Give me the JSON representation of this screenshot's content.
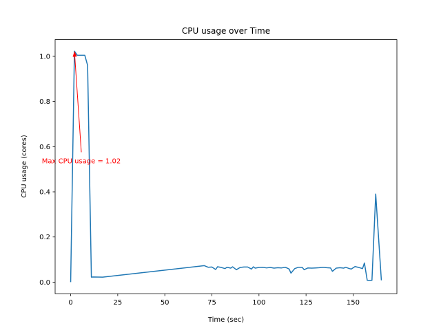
{
  "chart_data": {
    "type": "line",
    "title": "CPU usage over Time",
    "x_label": "Time (sec)",
    "y_label": "CPU usage (cores)",
    "x": [
      0,
      2,
      3.5,
      7.5,
      9,
      11,
      12,
      17,
      71,
      73,
      75,
      77,
      78,
      80,
      82,
      83,
      85,
      86,
      88,
      90,
      92,
      94,
      96,
      97,
      98,
      100,
      102,
      104,
      106,
      108,
      110,
      112,
      114,
      116,
      117,
      119,
      121,
      123,
      124,
      126,
      128,
      130,
      132,
      134,
      136,
      138,
      139,
      141,
      143,
      145,
      146,
      148,
      149,
      151,
      153,
      155,
      156,
      157.5,
      160,
      162,
      165
    ],
    "values": [
      0,
      1.023,
      1.005,
      1.005,
      0.96,
      0.022,
      0.023,
      0.022,
      0.073,
      0.066,
      0.067,
      0.056,
      0.068,
      0.065,
      0.06,
      0.066,
      0.062,
      0.068,
      0.055,
      0.065,
      0.067,
      0.067,
      0.058,
      0.068,
      0.062,
      0.065,
      0.066,
      0.063,
      0.065,
      0.062,
      0.064,
      0.063,
      0.066,
      0.058,
      0.04,
      0.06,
      0.066,
      0.065,
      0.055,
      0.063,
      0.062,
      0.063,
      0.064,
      0.066,
      0.064,
      0.063,
      0.048,
      0.062,
      0.064,
      0.062,
      0.066,
      0.06,
      0.058,
      0.069,
      0.065,
      0.06,
      0.085,
      0.008,
      0.008,
      0.39,
      0.008
    ],
    "color": "#1f77b4",
    "annotation": "Max CPU usage = 1.02",
    "annotation_color": "red",
    "xlim": [
      -8.25,
      173.25
    ],
    "xticks": [
      0,
      25,
      50,
      75,
      100,
      125,
      150
    ],
    "ylim": [
      -0.0512,
      1.0742
    ],
    "yticks": [
      {
        "value": 0,
        "label": "0.0"
      },
      {
        "value": 0.2,
        "label": "0.2"
      },
      {
        "value": 0.4,
        "label": "0.4"
      },
      {
        "value": 0.6,
        "label": "0.6"
      },
      {
        "value": 0.8,
        "label": "0.8"
      },
      {
        "value": 1.0,
        "label": "1.0"
      }
    ]
  }
}
